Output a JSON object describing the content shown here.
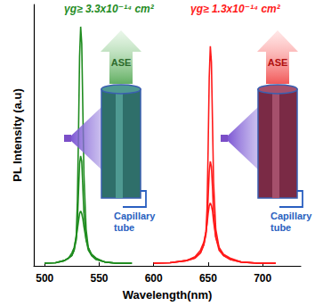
{
  "chart_data": {
    "type": "line",
    "x_label": "Wavelength(nm)",
    "y_label": "PL Intensity (a.u)",
    "xlim": [
      490,
      735
    ],
    "xticks": [
      500,
      550,
      600,
      650,
      700
    ],
    "ylim": [
      0,
      1
    ],
    "tick_labels": "x",
    "grid": false,
    "annotations": [
      {
        "text": "γg≥ 3.3x10⁻¹⁴ cm²",
        "color": "#1f8c1f"
      },
      {
        "text": "γg≥ 1.3x10⁻¹⁴ cm²",
        "color": "#ff1a1a"
      }
    ],
    "insets": [
      {
        "label": "ASE",
        "tube_label": "Capillary tube",
        "color": "#1f8c1f"
      },
      {
        "label": "ASE",
        "tube_label": "Capillary tube",
        "color": "#ff1a1a"
      }
    ],
    "series": [
      {
        "color": "#1f8c1f",
        "x": [
          500,
          510,
          518,
          522,
          525,
          527,
          529,
          530,
          531,
          532,
          533,
          534,
          535,
          536,
          538,
          540,
          543,
          547,
          555,
          565,
          580
        ],
        "values": [
          0.01,
          0.012,
          0.02,
          0.03,
          0.04,
          0.06,
          0.12,
          0.25,
          0.5,
          0.8,
          0.915,
          0.85,
          0.6,
          0.35,
          0.14,
          0.07,
          0.04,
          0.025,
          0.015,
          0.01,
          0.01
        ]
      },
      {
        "color": "#1f8c1f",
        "x": [
          500,
          510,
          518,
          522,
          525,
          527,
          529,
          530,
          531,
          532,
          533,
          534,
          535,
          536,
          538,
          540,
          543,
          547,
          555,
          565,
          580
        ],
        "values": [
          0.01,
          0.012,
          0.02,
          0.03,
          0.04,
          0.06,
          0.1,
          0.17,
          0.28,
          0.39,
          0.42,
          0.4,
          0.3,
          0.2,
          0.1,
          0.06,
          0.04,
          0.025,
          0.015,
          0.01,
          0.01
        ]
      },
      {
        "color": "#1f8c1f",
        "x": [
          500,
          510,
          518,
          522,
          525,
          527,
          529,
          530,
          531,
          532,
          533,
          534,
          535,
          536,
          538,
          540,
          543,
          547,
          555,
          565,
          580
        ],
        "values": [
          0.01,
          0.012,
          0.02,
          0.03,
          0.05,
          0.07,
          0.11,
          0.14,
          0.17,
          0.2,
          0.21,
          0.2,
          0.18,
          0.15,
          0.1,
          0.07,
          0.045,
          0.03,
          0.015,
          0.01,
          0.01
        ]
      },
      {
        "color": "#ff1a1a",
        "x": [
          600,
          615,
          630,
          638,
          643,
          646,
          648,
          649,
          650,
          651,
          652,
          653,
          654,
          655,
          657,
          660,
          664,
          670,
          680,
          695,
          712
        ],
        "values": [
          0.01,
          0.012,
          0.02,
          0.03,
          0.05,
          0.08,
          0.13,
          0.22,
          0.45,
          0.72,
          0.84,
          0.78,
          0.55,
          0.32,
          0.14,
          0.07,
          0.04,
          0.025,
          0.015,
          0.01,
          0.01
        ]
      },
      {
        "color": "#ff1a1a",
        "x": [
          600,
          615,
          630,
          638,
          643,
          646,
          648,
          649,
          650,
          651,
          652,
          653,
          654,
          655,
          657,
          660,
          664,
          670,
          680,
          695,
          712
        ],
        "values": [
          0.01,
          0.012,
          0.02,
          0.03,
          0.05,
          0.08,
          0.12,
          0.17,
          0.26,
          0.36,
          0.4,
          0.38,
          0.3,
          0.2,
          0.11,
          0.06,
          0.04,
          0.025,
          0.015,
          0.01,
          0.01
        ]
      },
      {
        "color": "#ff1a1a",
        "x": [
          600,
          615,
          630,
          638,
          643,
          646,
          648,
          649,
          650,
          651,
          652,
          653,
          654,
          655,
          657,
          660,
          664,
          670,
          680,
          695,
          712
        ],
        "values": [
          0.01,
          0.012,
          0.02,
          0.035,
          0.06,
          0.09,
          0.13,
          0.16,
          0.2,
          0.23,
          0.24,
          0.23,
          0.21,
          0.17,
          0.11,
          0.07,
          0.045,
          0.03,
          0.015,
          0.01,
          0.01
        ]
      }
    ]
  }
}
